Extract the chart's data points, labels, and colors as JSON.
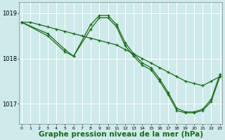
{
  "background_color": "#ceeaea",
  "grid_color": "#ffffff",
  "line_color": "#1a6b1a",
  "marker_color": "#1a6b1a",
  "xlabel": "Graphe pression niveau de la mer (hPa)",
  "xlabel_fontsize": 7.5,
  "hours": [
    0,
    1,
    2,
    3,
    4,
    5,
    6,
    7,
    8,
    9,
    10,
    11,
    12,
    13,
    14,
    15,
    16,
    17,
    18,
    19,
    20,
    21,
    22,
    23
  ],
  "series1": [
    1018.8,
    1018.8,
    1018.75,
    1018.7,
    1018.65,
    1018.6,
    1018.55,
    1018.5,
    1018.45,
    1018.4,
    1018.35,
    1018.3,
    1018.2,
    1018.1,
    1018.0,
    1017.9,
    1017.8,
    1017.7,
    1017.6,
    1017.5,
    1017.45,
    1017.4,
    1017.5,
    1017.6
  ],
  "series2_x": [
    0,
    3,
    5,
    6,
    8,
    9,
    10,
    11,
    12,
    13,
    14,
    15,
    16,
    17,
    18,
    19,
    20,
    21,
    22,
    23
  ],
  "series2_y": [
    1018.8,
    1018.55,
    1018.2,
    1018.05,
    1018.75,
    1018.95,
    1018.95,
    1018.75,
    1018.35,
    1018.1,
    1017.9,
    1017.8,
    1017.55,
    1017.25,
    1016.9,
    1016.82,
    1016.82,
    1016.88,
    1017.1,
    1017.65
  ],
  "series3_x": [
    0,
    3,
    5,
    6,
    8,
    9,
    10,
    11,
    12,
    13,
    14,
    15,
    16,
    17,
    18,
    19,
    20,
    21,
    22,
    23
  ],
  "series3_y": [
    1018.8,
    1018.5,
    1018.15,
    1018.05,
    1018.65,
    1018.9,
    1018.9,
    1018.7,
    1018.28,
    1018.05,
    1017.85,
    1017.75,
    1017.5,
    1017.2,
    1016.85,
    1016.8,
    1016.8,
    1016.85,
    1017.05,
    1017.6
  ],
  "ylim_min": 1016.55,
  "ylim_max": 1019.25,
  "yticks": [
    1017.0,
    1018.0,
    1019.0
  ],
  "xlim_min": -0.3,
  "xlim_max": 23.3
}
